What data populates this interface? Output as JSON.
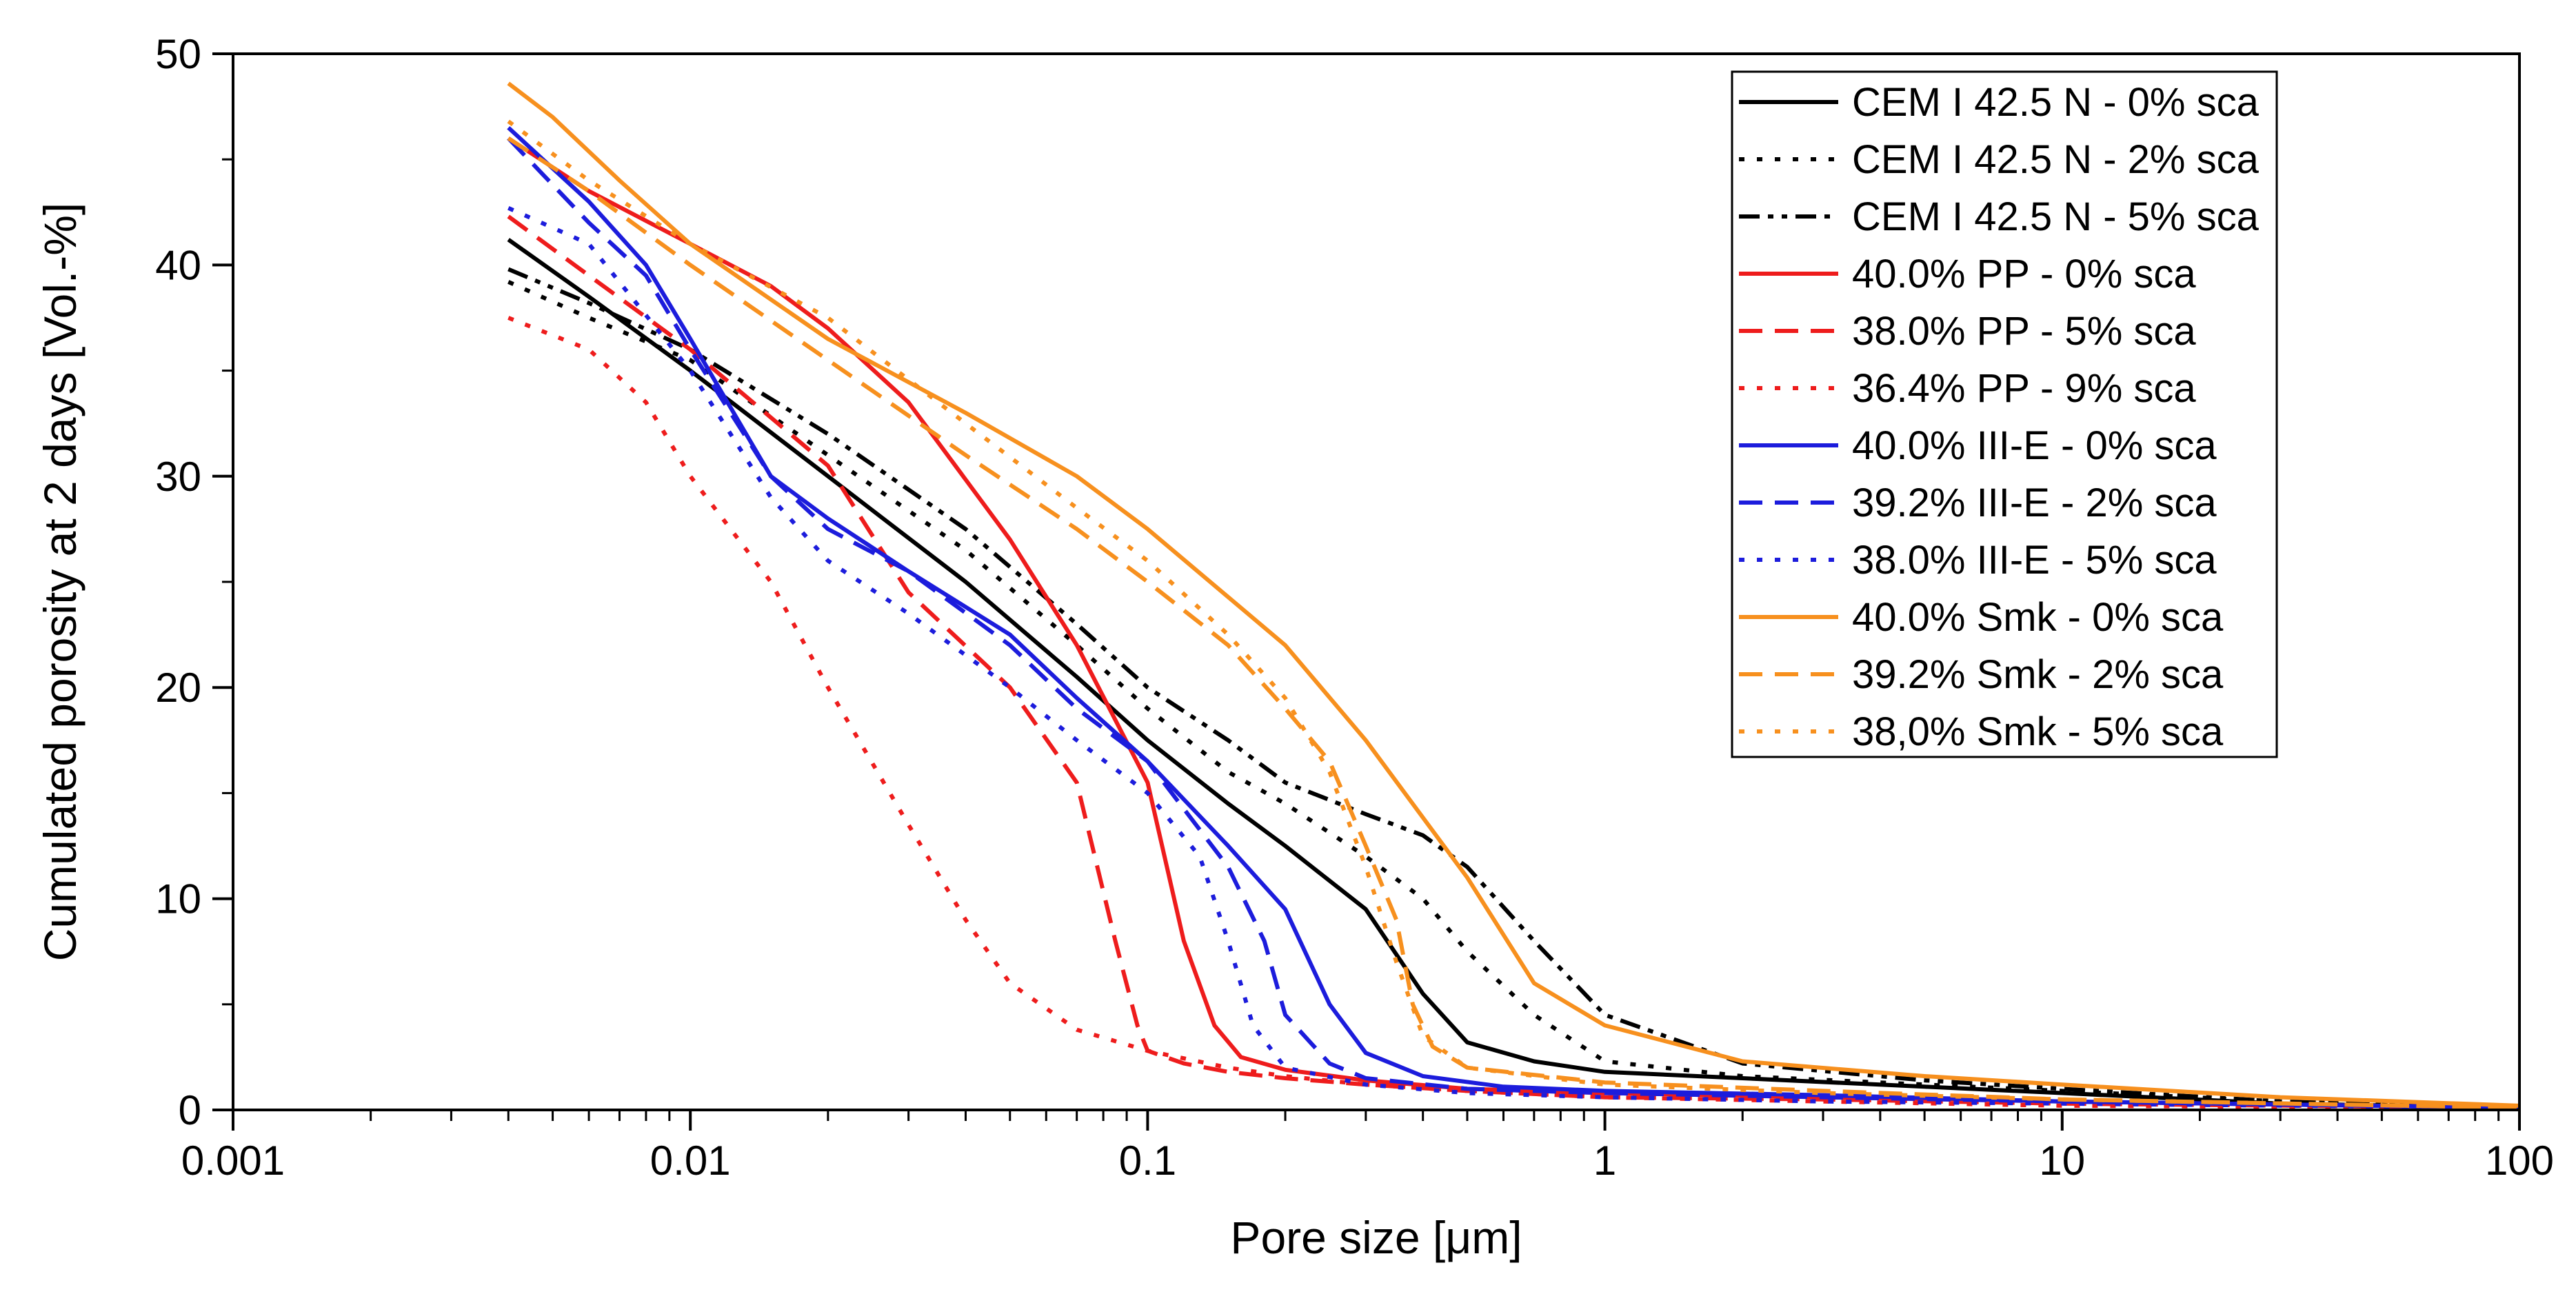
{
  "chart_data": {
    "type": "line",
    "title": "",
    "xlabel": "Pore size [μm]",
    "ylabel": "Cumulated porosity at 2 days [Vol.-%]",
    "xscale": "log",
    "xlim": [
      0.001,
      100
    ],
    "ylim": [
      0,
      50
    ],
    "xticks": [
      {
        "value": 0.001,
        "label": "0.001"
      },
      {
        "value": 0.01,
        "label": "0.01"
      },
      {
        "value": 0.1,
        "label": "0.1"
      },
      {
        "value": 1,
        "label": "1"
      },
      {
        "value": 10,
        "label": "10"
      },
      {
        "value": 100,
        "label": "100"
      }
    ],
    "yticks": [
      {
        "value": 0,
        "label": "0"
      },
      {
        "value": 10,
        "label": "10"
      },
      {
        "value": 20,
        "label": "20"
      },
      {
        "value": 30,
        "label": "30"
      },
      {
        "value": 40,
        "label": "40"
      },
      {
        "value": 50,
        "label": "50"
      }
    ],
    "grid": false,
    "legend_position": "top-right",
    "series": [
      {
        "name": "CEM I 42.5 N - 0% sca",
        "color": "#000000",
        "dash": "solid",
        "x": [
          0.004,
          0.006,
          0.01,
          0.02,
          0.04,
          0.07,
          0.1,
          0.15,
          0.2,
          0.3,
          0.4,
          0.5,
          0.7,
          1,
          2,
          5,
          10,
          30,
          100
        ],
        "y": [
          41.2,
          38.5,
          35,
          30,
          25,
          20.5,
          17.5,
          14.5,
          12.5,
          9.5,
          5.5,
          3.2,
          2.3,
          1.8,
          1.5,
          1.1,
          0.8,
          0.3,
          0.1
        ]
      },
      {
        "name": "CEM I 42.5 N - 2% sca",
        "color": "#000000",
        "dash": "dot",
        "x": [
          0.004,
          0.006,
          0.01,
          0.02,
          0.04,
          0.07,
          0.1,
          0.15,
          0.2,
          0.3,
          0.4,
          0.5,
          0.7,
          1,
          2,
          5,
          10,
          30,
          100
        ],
        "y": [
          39.2,
          37.5,
          35.5,
          31,
          26.5,
          22,
          19,
          16,
          14.5,
          12,
          10,
          7.5,
          4.5,
          2.3,
          1.6,
          1.2,
          0.9,
          0.4,
          0.1
        ]
      },
      {
        "name": "CEM I 42.5 N - 5% sca",
        "color": "#000000",
        "dash": "dashdotdot",
        "x": [
          0.004,
          0.006,
          0.01,
          0.02,
          0.04,
          0.07,
          0.1,
          0.15,
          0.2,
          0.3,
          0.4,
          0.5,
          0.7,
          1,
          2,
          5,
          10,
          30,
          100
        ],
        "y": [
          39.8,
          38.2,
          36,
          32,
          27.5,
          23,
          20,
          17.5,
          15.5,
          14,
          13,
          11.5,
          8,
          4.5,
          2.2,
          1.4,
          1,
          0.4,
          0.1
        ]
      },
      {
        "name": "40.0% PP - 0% sca",
        "color": "#ee1c1c",
        "dash": "solid",
        "x": [
          0.004,
          0.006,
          0.01,
          0.015,
          0.02,
          0.03,
          0.05,
          0.07,
          0.1,
          0.12,
          0.14,
          0.16,
          0.2,
          0.3,
          0.5,
          1,
          3,
          10,
          100
        ],
        "y": [
          46,
          43.5,
          41,
          39,
          37,
          33.5,
          27,
          22,
          15.5,
          8,
          4,
          2.5,
          1.9,
          1.4,
          1,
          0.8,
          0.6,
          0.4,
          0.1
        ]
      },
      {
        "name": "38.0% PP - 5% sca",
        "color": "#ee1c1c",
        "dash": "dash",
        "x": [
          0.004,
          0.006,
          0.01,
          0.02,
          0.03,
          0.05,
          0.07,
          0.085,
          0.095,
          0.1,
          0.12,
          0.15,
          0.2,
          0.3,
          0.5,
          1,
          3,
          10,
          100
        ],
        "y": [
          42.3,
          39.5,
          36,
          30.5,
          24.5,
          20,
          15.5,
          8,
          4,
          2.8,
          2.2,
          1.8,
          1.5,
          1.2,
          0.9,
          0.6,
          0.5,
          0.3,
          0.1
        ]
      },
      {
        "name": "36.4% PP - 9% sca",
        "color": "#ee1c1c",
        "dash": "dot",
        "x": [
          0.004,
          0.006,
          0.008,
          0.01,
          0.015,
          0.02,
          0.03,
          0.04,
          0.05,
          0.07,
          0.1,
          0.15,
          0.2,
          0.3,
          0.5,
          1,
          3,
          10,
          100
        ],
        "y": [
          37.5,
          36,
          33.5,
          30,
          25,
          20,
          13.5,
          9,
          6,
          3.8,
          2.8,
          2,
          1.6,
          1.2,
          0.9,
          0.6,
          0.4,
          0.2,
          0.1
        ]
      },
      {
        "name": "40.0% III-E - 0% sca",
        "color": "#1c1cdc",
        "dash": "solid",
        "x": [
          0.004,
          0.006,
          0.008,
          0.01,
          0.015,
          0.02,
          0.03,
          0.05,
          0.07,
          0.1,
          0.15,
          0.2,
          0.25,
          0.3,
          0.4,
          0.6,
          1,
          3,
          10,
          100
        ],
        "y": [
          46.5,
          43,
          40,
          36.5,
          30,
          28,
          25.5,
          22.5,
          19.5,
          16.5,
          12.5,
          9.5,
          5,
          2.7,
          1.6,
          1.1,
          0.9,
          0.7,
          0.4,
          0.1
        ]
      },
      {
        "name": "39.2% III-E - 2% sca",
        "color": "#1c1cdc",
        "dash": "dash",
        "x": [
          0.004,
          0.006,
          0.008,
          0.01,
          0.015,
          0.02,
          0.03,
          0.05,
          0.07,
          0.1,
          0.15,
          0.18,
          0.2,
          0.25,
          0.3,
          0.5,
          1,
          3,
          10,
          100
        ],
        "y": [
          46,
          42,
          39.5,
          36,
          30,
          27.5,
          25.5,
          22,
          19,
          16.5,
          11.5,
          8,
          4.5,
          2.2,
          1.5,
          1,
          0.8,
          0.6,
          0.4,
          0.1
        ]
      },
      {
        "name": "38.0% III-E - 5% sca",
        "color": "#1c1cdc",
        "dash": "dot",
        "x": [
          0.004,
          0.006,
          0.01,
          0.015,
          0.02,
          0.03,
          0.05,
          0.07,
          0.1,
          0.13,
          0.15,
          0.17,
          0.2,
          0.3,
          0.5,
          1,
          3,
          10,
          100
        ],
        "y": [
          42.7,
          41,
          35,
          29,
          26,
          23.5,
          20,
          17.5,
          15,
          12,
          8,
          4,
          2,
          1.2,
          0.8,
          0.6,
          0.4,
          0.3,
          0.1
        ]
      },
      {
        "name": "40.0% Smk - 0% sca",
        "color": "#f7901e",
        "dash": "solid",
        "x": [
          0.004,
          0.005,
          0.007,
          0.01,
          0.02,
          0.04,
          0.07,
          0.1,
          0.2,
          0.3,
          0.5,
          0.7,
          1,
          2,
          5,
          10,
          30,
          100
        ],
        "y": [
          48.6,
          47,
          44,
          41,
          36.5,
          33,
          30,
          27.5,
          22,
          17.5,
          11,
          6,
          4,
          2.3,
          1.6,
          1.2,
          0.6,
          0.2
        ]
      },
      {
        "name": "39.2% Smk - 2% sca",
        "color": "#f7901e",
        "dash": "dash",
        "x": [
          0.004,
          0.006,
          0.01,
          0.02,
          0.04,
          0.07,
          0.1,
          0.15,
          0.2,
          0.25,
          0.3,
          0.35,
          0.38,
          0.42,
          0.5,
          1,
          3,
          10,
          100
        ],
        "y": [
          46,
          43.5,
          40,
          35.5,
          31,
          27.5,
          25,
          22,
          19,
          16.5,
          12.5,
          9,
          5,
          3,
          2,
          1.3,
          0.9,
          0.5,
          0.1
        ]
      },
      {
        "name": "38,0% Smk - 5% sca",
        "color": "#f7901e",
        "dash": "dot",
        "x": [
          0.004,
          0.006,
          0.01,
          0.02,
          0.04,
          0.07,
          0.1,
          0.15,
          0.2,
          0.25,
          0.3,
          0.35,
          0.4,
          0.5,
          1,
          3,
          10,
          100
        ],
        "y": [
          46.8,
          44,
          41,
          37.5,
          32.5,
          28.5,
          26,
          22.5,
          19.5,
          16,
          11.5,
          7,
          3.5,
          2,
          1.2,
          0.8,
          0.5,
          0.1
        ]
      }
    ]
  }
}
